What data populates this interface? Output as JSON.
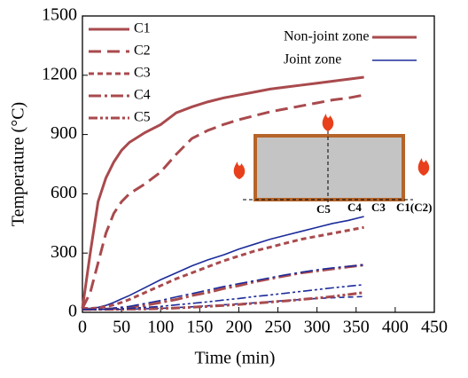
{
  "chart_data": {
    "type": "line",
    "x_label": "Time (min)",
    "y_label": "Temperature (°C)",
    "xlim": [
      0,
      450
    ],
    "xticks": [
      0,
      50,
      100,
      150,
      200,
      250,
      300,
      350,
      400,
      450
    ],
    "ylim": [
      0,
      1500
    ],
    "yticks": [
      0,
      300,
      600,
      900,
      1200,
      1500
    ],
    "x": [
      0,
      10,
      20,
      30,
      40,
      50,
      60,
      80,
      100,
      120,
      140,
      160,
      180,
      200,
      220,
      240,
      260,
      280,
      300,
      320,
      340,
      360
    ],
    "zones": [
      {
        "name": "Non-joint zone",
        "color": "#a94a4d",
        "width": 3
      },
      {
        "name": "Joint zone",
        "color": "#1c2b9a",
        "width": 1.6
      }
    ],
    "series": [
      {
        "name": "C1",
        "dash": "none",
        "values": [
          20,
          300,
          560,
          680,
          760,
          820,
          860,
          910,
          950,
          1010,
          1040,
          1065,
          1085,
          1100,
          1115,
          1130,
          1140,
          1150,
          1160,
          1170,
          1180,
          1190
        ],
        "joint_values": [
          20,
          20,
          25,
          35,
          50,
          68,
          85,
          125,
          165,
          200,
          235,
          265,
          290,
          320,
          345,
          370,
          390,
          410,
          430,
          450,
          465,
          485
        ]
      },
      {
        "name": "C2",
        "dash": "14 7",
        "values": [
          20,
          100,
          250,
          400,
          500,
          560,
          600,
          650,
          710,
          800,
          880,
          920,
          950,
          975,
          995,
          1015,
          1030,
          1045,
          1060,
          1075,
          1085,
          1100
        ]
      },
      {
        "name": "C3",
        "dash": "6 4",
        "values": [
          20,
          20,
          22,
          28,
          38,
          50,
          65,
          100,
          135,
          170,
          200,
          230,
          260,
          285,
          310,
          330,
          350,
          370,
          385,
          400,
          415,
          430
        ],
        "joint_values": [
          15,
          15,
          15,
          15,
          15,
          15,
          16,
          18,
          20,
          24,
          28,
          33,
          38,
          43,
          48,
          54,
          60,
          65,
          70,
          74,
          77,
          80
        ]
      },
      {
        "name": "C4",
        "dash": "14 4 3 4",
        "values": [
          15,
          15,
          16,
          17,
          18,
          21,
          25,
          35,
          50,
          65,
          85,
          100,
          120,
          135,
          155,
          170,
          185,
          200,
          210,
          220,
          230,
          240
        ],
        "joint_values": [
          15,
          15,
          16,
          18,
          22,
          26,
          30,
          45,
          60,
          78,
          95,
          112,
          130,
          145,
          160,
          175,
          190,
          203,
          215,
          225,
          233,
          240
        ]
      },
      {
        "name": "C5",
        "dash": "10 3 3 3 3 3",
        "values": [
          15,
          15,
          15,
          15,
          15,
          15,
          16,
          17,
          19,
          22,
          26,
          30,
          35,
          40,
          46,
          52,
          58,
          65,
          72,
          80,
          90,
          100
        ],
        "joint_values": [
          15,
          15,
          15,
          16,
          17,
          18,
          20,
          25,
          30,
          38,
          45,
          53,
          62,
          70,
          80,
          88,
          97,
          106,
          115,
          124,
          132,
          140
        ]
      }
    ],
    "inset_labels": [
      "C5",
      "C4",
      "C3",
      "C1(C2)"
    ]
  }
}
